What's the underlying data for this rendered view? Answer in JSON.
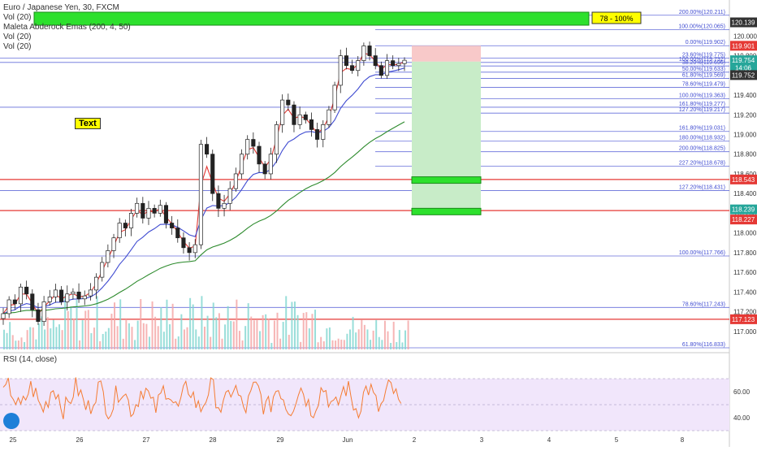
{
  "legend": {
    "title": "Euro / Japanese Yen, 30, FXCM",
    "vol1": "Vol (20)",
    "ema": "Maleta Abderock Emas (200, 4, 50)",
    "vol2": "Vol (20)",
    "vol3": "Vol (20)",
    "rsi": "RSI (14, close)"
  },
  "text_badge": "Text",
  "fib_top_label": "78 - 100%",
  "colors": {
    "up": "#26a69a",
    "down": "#ef5350",
    "fib_line": "#3f4bd1",
    "red_line": "#e53935",
    "green_box": "#2de02d",
    "long_target": "#c8ecc8",
    "long_stop": "#f8c9c9",
    "rsi_band": "#f1e6fb",
    "rsi_line": "#f57c33",
    "ema_fast": "#e53935",
    "ema_mid": "#3f4bd1",
    "ema_slow": "#2e8b2e"
  },
  "chart_data": {
    "type": "candlestick",
    "symbol": "EURJPY",
    "interval": "30",
    "ylim": [
      116.8,
      120.3
    ],
    "y_ticks": [
      "120.000",
      "119.800",
      "119.600",
      "119.400",
      "119.200",
      "119.000",
      "118.800",
      "118.600",
      "118.400",
      "118.200",
      "118.000",
      "117.800",
      "117.600",
      "117.400",
      "117.200",
      "117.000"
    ],
    "x_ticks": [
      "25",
      "26",
      "27",
      "28",
      "29",
      "Jun",
      "2",
      "3",
      "4",
      "5",
      "8"
    ],
    "price_badges": [
      {
        "text": "120.139",
        "value": 120.139,
        "color": "#333333"
      },
      {
        "text": "119.901",
        "value": 119.901,
        "color": "#e53935"
      },
      {
        "text": "119.754",
        "value": 119.754,
        "color": "#26a69a"
      },
      {
        "text": "14:06",
        "value": 119.75,
        "color": "#26a69a",
        "offset": 9
      },
      {
        "text": "119.752",
        "value": 119.752,
        "color": "#333333",
        "offset": 18
      },
      {
        "text": "118.543",
        "value": 118.543,
        "color": "#e53935"
      },
      {
        "text": "118.239",
        "value": 118.239,
        "color": "#26a69a"
      },
      {
        "text": "118.227",
        "value": 118.227,
        "color": "#e53935",
        "offset": 11
      },
      {
        "text": "117.123",
        "value": 117.123,
        "color": "#e53935"
      }
    ],
    "fib_levels": [
      {
        "label": "200.00%(120.211)",
        "value": 120.211,
        "full": false
      },
      {
        "label": "100.00%(120.065)",
        "value": 120.065,
        "full": false
      },
      {
        "label": "0.00%(119.902)",
        "value": 119.902,
        "full": false
      },
      {
        "label": "23.60%(119.775)",
        "value": 119.775,
        "full": true
      },
      {
        "label": "100.00%(119.732)",
        "value": 119.732,
        "full": true
      },
      {
        "label": "38.20%(119.696)",
        "value": 119.696,
        "full": false
      },
      {
        "label": "50.00%(119.633)",
        "value": 119.633,
        "full": false
      },
      {
        "label": "61.80%(119.569)",
        "value": 119.569,
        "full": false
      },
      {
        "label": "78.60%(119.479)",
        "value": 119.479,
        "full": false
      },
      {
        "label": "100.00%(119.363)",
        "value": 119.363,
        "full": false
      },
      {
        "label": "161.80%(119.277)",
        "value": 119.277,
        "full": true
      },
      {
        "label": "127.20%(119.217)",
        "value": 119.217,
        "full": false
      },
      {
        "label": "161.80%(119.031)",
        "value": 119.031,
        "full": false
      },
      {
        "label": "180.00%(118.932)",
        "value": 118.932,
        "full": false
      },
      {
        "label": "200.00%(118.825)",
        "value": 118.825,
        "full": false
      },
      {
        "label": "227.20%(118.678)",
        "value": 118.678,
        "full": false
      },
      {
        "label": "127.20%(118.431)",
        "value": 118.431,
        "full": true
      },
      {
        "label": "100.00%(117.766)",
        "value": 117.766,
        "full": true
      },
      {
        "label": "78.60%(117.243)",
        "value": 117.243,
        "full": true
      },
      {
        "label": "61.80%(116.833)",
        "value": 116.833,
        "full": true
      }
    ],
    "red_lines": [
      118.543,
      118.227,
      117.123
    ],
    "rsi": {
      "ylim": [
        30,
        80
      ],
      "y_ticks": [
        "60.00",
        "40.00"
      ],
      "band": [
        30,
        70
      ]
    },
    "closes": [
      117.18,
      117.32,
      117.28,
      117.45,
      117.38,
      117.22,
      117.1,
      117.3,
      117.35,
      117.42,
      117.3,
      117.38,
      117.4,
      117.33,
      117.36,
      117.42,
      117.55,
      117.7,
      117.82,
      117.95,
      118.1,
      118.05,
      118.2,
      118.3,
      118.15,
      118.25,
      118.2,
      118.28,
      118.1,
      118.05,
      117.95,
      117.85,
      117.8,
      117.88,
      118.9,
      118.8,
      118.4,
      118.25,
      118.3,
      118.45,
      118.6,
      118.8,
      118.95,
      118.88,
      118.7,
      118.6,
      118.8,
      119.1,
      119.35,
      119.3,
      119.1,
      119.2,
      119.15,
      119.05,
      118.95,
      119.1,
      119.25,
      119.5,
      119.8,
      119.7,
      119.65,
      119.75,
      119.9,
      119.8,
      119.7,
      119.6,
      119.75,
      119.7,
      119.72,
      119.754
    ]
  }
}
